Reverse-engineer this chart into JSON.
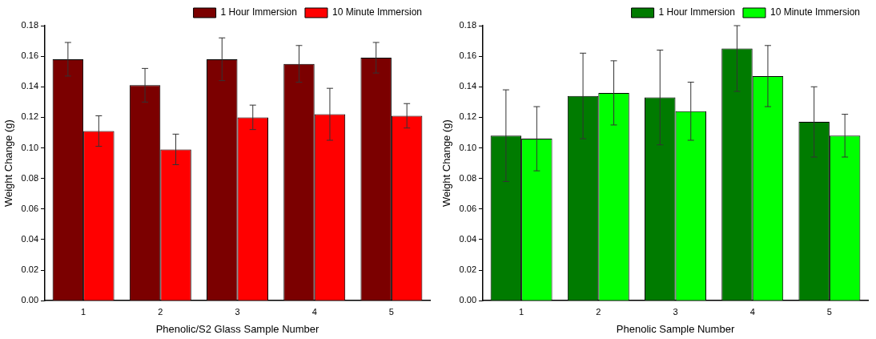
{
  "chart_data": [
    {
      "type": "bar",
      "xlabel": "Phenolic/S2 Glass Sample Number",
      "ylabel": "Weight Change (g)",
      "categories": [
        "1",
        "2",
        "3",
        "4",
        "5"
      ],
      "series": [
        {
          "name": "1 Hour Immersion",
          "color": "#7b0000",
          "values": [
            0.158,
            0.141,
            0.158,
            0.155,
            0.159
          ],
          "errors": [
            0.011,
            0.011,
            0.014,
            0.012,
            0.01
          ]
        },
        {
          "name": "10 Minute Immersion",
          "color": "#ff0000",
          "values": [
            0.111,
            0.099,
            0.12,
            0.122,
            0.121
          ],
          "errors": [
            0.01,
            0.01,
            0.008,
            0.017,
            0.008
          ]
        }
      ],
      "ylim": [
        0,
        0.18
      ],
      "yticks": [
        {
          "value": 0,
          "label": "0.00"
        },
        {
          "value": 0.02,
          "label": "0.02"
        },
        {
          "value": 0.04,
          "label": "0.04"
        },
        {
          "value": 0.06,
          "label": "0.06"
        },
        {
          "value": 0.08,
          "label": "0.08"
        },
        {
          "value": 0.1,
          "label": "0.10"
        },
        {
          "value": 0.12,
          "label": "0.12"
        },
        {
          "value": 0.14,
          "label": "0.14"
        },
        {
          "value": 0.16,
          "label": "0.16"
        },
        {
          "value": 0.18,
          "label": "0.18"
        }
      ],
      "grid": false,
      "legend": "top right"
    },
    {
      "type": "bar",
      "xlabel": "Phenolic Sample Number",
      "ylabel": "Weight Change (g)",
      "categories": [
        "1",
        "2",
        "3",
        "4",
        "5"
      ],
      "series": [
        {
          "name": "1 Hour Immersion",
          "color": "#007b00",
          "values": [
            0.108,
            0.134,
            0.133,
            0.165,
            0.117
          ],
          "errors": [
            0.03,
            0.028,
            0.031,
            [
              0.137,
              0.18
            ],
            0.023
          ]
        },
        {
          "name": "10 Minute Immersion",
          "color": "#00ff00",
          "values": [
            0.106,
            0.136,
            0.124,
            0.147,
            0.108
          ],
          "errors": [
            0.021,
            0.021,
            0.019,
            0.02,
            0.014
          ]
        }
      ],
      "ylim": [
        0,
        0.18
      ],
      "yticks": [
        {
          "value": 0,
          "label": "0.00"
        },
        {
          "value": 0.02,
          "label": "0.02"
        },
        {
          "value": 0.04,
          "label": "0.04"
        },
        {
          "value": 0.06,
          "label": "0.06"
        },
        {
          "value": 0.08,
          "label": "0.08"
        },
        {
          "value": 0.1,
          "label": "0.10"
        },
        {
          "value": 0.12,
          "label": "0.12"
        },
        {
          "value": 0.14,
          "label": "0.14"
        },
        {
          "value": 0.16,
          "label": "0.16"
        },
        {
          "value": 0.18,
          "label": "0.18"
        }
      ],
      "grid": false,
      "legend": "top right"
    }
  ]
}
